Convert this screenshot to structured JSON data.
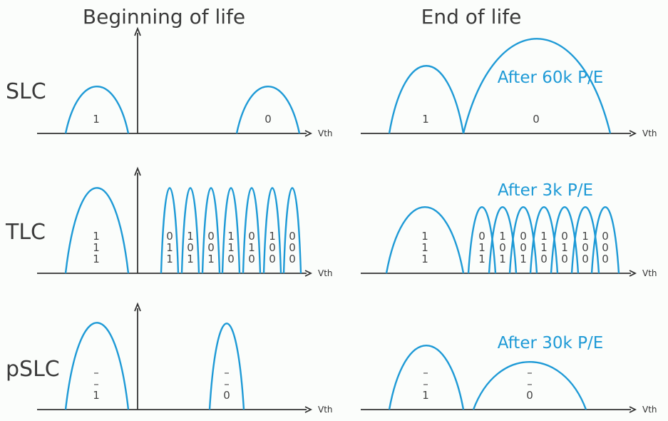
{
  "columns": [
    "Beginning of life",
    "End of life"
  ],
  "rows": [
    "SLC",
    "TLC",
    "pSLC"
  ],
  "axis_label": "Vth",
  "colors": {
    "curve": "#1e9ad6",
    "text": "#3a3a3a",
    "axis": "#333333"
  },
  "panels": [
    {
      "row": "SLC",
      "column": "Beginning of life",
      "note": "",
      "states": [
        [
          "1"
        ],
        [
          "0"
        ]
      ]
    },
    {
      "row": "SLC",
      "column": "End of life",
      "note": "After 60k P/E",
      "states": [
        [
          "1"
        ],
        [
          "0"
        ]
      ]
    },
    {
      "row": "TLC",
      "column": "Beginning of life",
      "note": "",
      "states": [
        [
          "1",
          "1",
          "1"
        ],
        [
          "0",
          "1",
          "1"
        ],
        [
          "1",
          "0",
          "1"
        ],
        [
          "0",
          "0",
          "1"
        ],
        [
          "1",
          "1",
          "0"
        ],
        [
          "0",
          "1",
          "0"
        ],
        [
          "1",
          "0",
          "0"
        ],
        [
          "0",
          "0",
          "0"
        ]
      ]
    },
    {
      "row": "TLC",
      "column": "End of life",
      "note": "After 3k P/E",
      "states": [
        [
          "1",
          "1",
          "1"
        ],
        [
          "0",
          "1",
          "1"
        ],
        [
          "1",
          "0",
          "1"
        ],
        [
          "0",
          "0",
          "1"
        ],
        [
          "1",
          "1",
          "0"
        ],
        [
          "0",
          "1",
          "0"
        ],
        [
          "1",
          "0",
          "0"
        ],
        [
          "0",
          "0",
          "0"
        ]
      ]
    },
    {
      "row": "pSLC",
      "column": "Beginning of life",
      "note": "",
      "states": [
        [
          "–",
          "–",
          "1"
        ],
        [
          "–",
          "–",
          "0"
        ]
      ]
    },
    {
      "row": "pSLC",
      "column": "End of life",
      "note": "After 30k P/E",
      "states": [
        [
          "–",
          "–",
          "1"
        ],
        [
          "–",
          "–",
          "0"
        ]
      ]
    }
  ]
}
